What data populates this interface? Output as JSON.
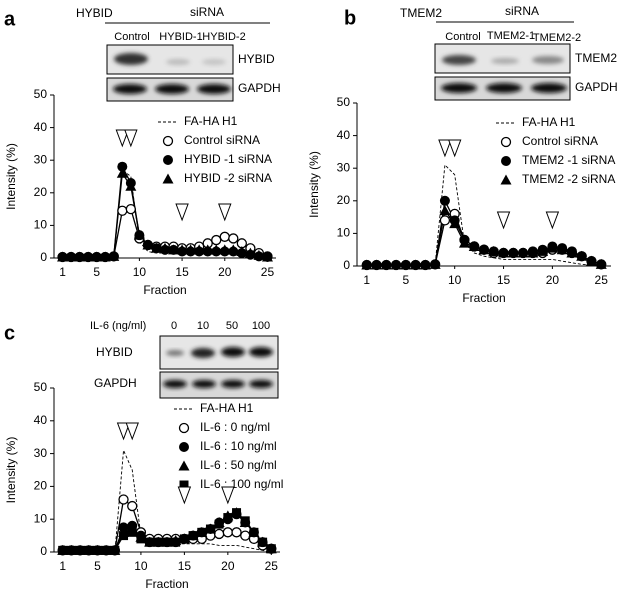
{
  "chart_data": [
    {
      "type": "line",
      "panel": "a",
      "blot": {
        "header": "HYBID",
        "group": "siRNA",
        "lanes": [
          "Control",
          "HYBID-1",
          "HYBID-2"
        ],
        "rows": [
          "HYBID",
          "GAPDH"
        ]
      },
      "xlabel": "Fraction",
      "ylabel": "Intensity (%)",
      "x": [
        1,
        2,
        3,
        4,
        5,
        6,
        7,
        8,
        9,
        10,
        11,
        12,
        13,
        14,
        15,
        16,
        17,
        18,
        19,
        20,
        21,
        22,
        23,
        24,
        25
      ],
      "xlim": [
        0,
        26
      ],
      "xticks": [
        1,
        5,
        10,
        15,
        20,
        25
      ],
      "ylim": [
        0,
        50
      ],
      "yticks": [
        0,
        10,
        20,
        30,
        40,
        50
      ],
      "arrowheads": [
        8,
        9,
        15,
        20
      ],
      "series": [
        {
          "name": "FA-HA H1",
          "color": "#000000",
          "marker": "none",
          "dash": true,
          "values": [
            0,
            0,
            0,
            0,
            0,
            0,
            0.2,
            27,
            25,
            5,
            2,
            1.5,
            1.5,
            1.5,
            1.5,
            1.5,
            1.5,
            1.5,
            1.5,
            1.5,
            1.5,
            1,
            0.8,
            0.5,
            0.2
          ]
        },
        {
          "name": "Control siRNA",
          "color": "#000000",
          "marker": "open-circle",
          "dash": false,
          "values": [
            0.3,
            0.3,
            0.3,
            0.3,
            0.3,
            0.3,
            0.5,
            14.5,
            15,
            6,
            4,
            3.5,
            3.5,
            3.5,
            3,
            3,
            3.5,
            4.5,
            5.5,
            6.5,
            6,
            4.5,
            3,
            1.5,
            0.5
          ]
        },
        {
          "name": "HYBID -1 siRNA",
          "color": "#000000",
          "marker": "circle",
          "dash": false,
          "values": [
            0.3,
            0.3,
            0.3,
            0.3,
            0.3,
            0.3,
            0.5,
            28,
            23,
            7,
            4,
            3,
            2.5,
            2.5,
            2,
            2,
            2,
            2,
            2,
            2,
            2,
            1.5,
            1,
            0.5,
            0.3
          ]
        },
        {
          "name": "HYBID -2 siRNA",
          "color": "#000000",
          "marker": "triangle",
          "dash": false,
          "values": [
            0.3,
            0.3,
            0.3,
            0.3,
            0.3,
            0.3,
            0.5,
            26,
            22,
            7,
            4,
            3,
            3,
            2.5,
            2.5,
            2.5,
            2.5,
            2.5,
            2.5,
            2.5,
            2.5,
            2,
            1.5,
            0.8,
            0.3
          ]
        }
      ]
    },
    {
      "type": "line",
      "panel": "b",
      "blot": {
        "header": "TMEM2",
        "group": "siRNA",
        "lanes": [
          "Control",
          "TMEM2-1",
          "TMEM2-2"
        ],
        "rows": [
          "TMEM2",
          "GAPDH"
        ]
      },
      "xlabel": "Fraction",
      "ylabel": "Intensity (%)",
      "x": [
        1,
        2,
        3,
        4,
        5,
        6,
        7,
        8,
        9,
        10,
        11,
        12,
        13,
        14,
        15,
        16,
        17,
        18,
        19,
        20,
        21,
        22,
        23,
        24,
        25
      ],
      "xlim": [
        0,
        26
      ],
      "xticks": [
        1,
        5,
        10,
        15,
        20,
        25
      ],
      "ylim": [
        0,
        50
      ],
      "yticks": [
        0,
        10,
        20,
        30,
        40,
        50
      ],
      "arrowheads": [
        9,
        10,
        15,
        20
      ],
      "series": [
        {
          "name": "FA-HA H1",
          "color": "#000000",
          "marker": "none",
          "dash": true,
          "values": [
            0,
            0,
            0,
            0,
            0,
            0,
            0,
            0.5,
            31,
            28,
            7,
            4,
            3,
            2.5,
            2,
            2,
            2,
            2,
            2,
            2,
            1.5,
            1,
            0.5,
            0.3,
            0
          ]
        },
        {
          "name": "Control siRNA",
          "color": "#000000",
          "marker": "open-circle",
          "dash": false,
          "values": [
            0.3,
            0.3,
            0.3,
            0.3,
            0.3,
            0.3,
            0.3,
            0.5,
            14,
            16,
            8,
            6,
            5,
            4,
            4,
            4,
            4,
            4,
            4,
            5,
            5,
            4,
            3,
            1.5,
            0.5
          ]
        },
        {
          "name": "TMEM2 -1 siRNA",
          "color": "#000000",
          "marker": "circle",
          "dash": false,
          "values": [
            0.3,
            0.3,
            0.3,
            0.3,
            0.3,
            0.3,
            0.3,
            0.5,
            20,
            14,
            8,
            6,
            5,
            4.5,
            4,
            4,
            4,
            4.5,
            5,
            6,
            5.5,
            4.5,
            3,
            1.5,
            0.5
          ]
        },
        {
          "name": "TMEM2 -2 siRNA",
          "color": "#000000",
          "marker": "triangle",
          "dash": false,
          "values": [
            0.3,
            0.3,
            0.3,
            0.3,
            0.3,
            0.3,
            0.3,
            0.5,
            17,
            13,
            7,
            6,
            5,
            4.5,
            4,
            4,
            4,
            4,
            4.5,
            5.5,
            5,
            4,
            3,
            1.5,
            0.5
          ]
        }
      ]
    },
    {
      "type": "line",
      "panel": "c",
      "blot": {
        "header": "IL-6 (ng/ml)",
        "lanes": [
          "0",
          "10",
          "50",
          "100"
        ],
        "rows": [
          "HYBID",
          "GAPDH"
        ]
      },
      "xlabel": "Fraction",
      "ylabel": "Intensity (%)",
      "x": [
        1,
        2,
        3,
        4,
        5,
        6,
        7,
        8,
        9,
        10,
        11,
        12,
        13,
        14,
        15,
        16,
        17,
        18,
        19,
        20,
        21,
        22,
        23,
        24,
        25
      ],
      "xlim": [
        0,
        26
      ],
      "xticks": [
        1,
        5,
        10,
        15,
        20,
        25
      ],
      "ylim": [
        0,
        50
      ],
      "yticks": [
        0,
        10,
        20,
        30,
        40,
        50
      ],
      "arrowheads": [
        8,
        9,
        15,
        20
      ],
      "series": [
        {
          "name": "FA-HA H1",
          "color": "#000000",
          "marker": "none",
          "dash": true,
          "values": [
            0,
            0,
            0,
            0,
            0,
            0,
            0,
            31,
            25,
            5,
            3,
            2.5,
            2.5,
            2.5,
            2.5,
            2.5,
            2.5,
            2.5,
            2,
            2,
            2,
            1.5,
            1,
            0.5,
            0
          ]
        },
        {
          "name": "IL-6 : 0 ng/ml",
          "color": "#000000",
          "marker": "open-circle",
          "dash": false,
          "values": [
            0.5,
            0.5,
            0.5,
            0.5,
            0.5,
            0.5,
            0.5,
            16,
            14,
            6,
            4,
            4,
            4,
            4,
            4,
            4,
            4,
            5,
            5.5,
            6,
            6,
            5,
            4,
            2,
            1
          ]
        },
        {
          "name": "IL-6 : 10 ng/ml",
          "color": "#000000",
          "marker": "circle",
          "dash": false,
          "values": [
            0.5,
            0.5,
            0.5,
            0.5,
            0.5,
            0.5,
            0.5,
            7.5,
            8,
            5,
            3,
            3,
            3,
            3,
            4,
            5,
            6,
            7,
            9,
            10,
            11.5,
            9,
            6,
            3,
            1
          ]
        },
        {
          "name": "IL-6 : 50 ng/ml",
          "color": "#000000",
          "marker": "triangle",
          "dash": false,
          "values": [
            0.5,
            0.5,
            0.5,
            0.5,
            0.5,
            0.5,
            0.5,
            6,
            7,
            4.5,
            3,
            3,
            3,
            3.5,
            4,
            5,
            6,
            7,
            9,
            11,
            12,
            9,
            6,
            3,
            1
          ]
        },
        {
          "name": "IL-6 : 100 ng/ml",
          "color": "#000000",
          "marker": "square",
          "dash": false,
          "values": [
            0.5,
            0.5,
            0.5,
            0.5,
            0.5,
            0.5,
            0.5,
            5,
            6,
            4,
            3,
            3,
            3,
            3,
            4,
            5,
            6,
            7,
            8.5,
            10.5,
            12,
            9.5,
            6,
            3,
            1
          ]
        }
      ]
    }
  ]
}
